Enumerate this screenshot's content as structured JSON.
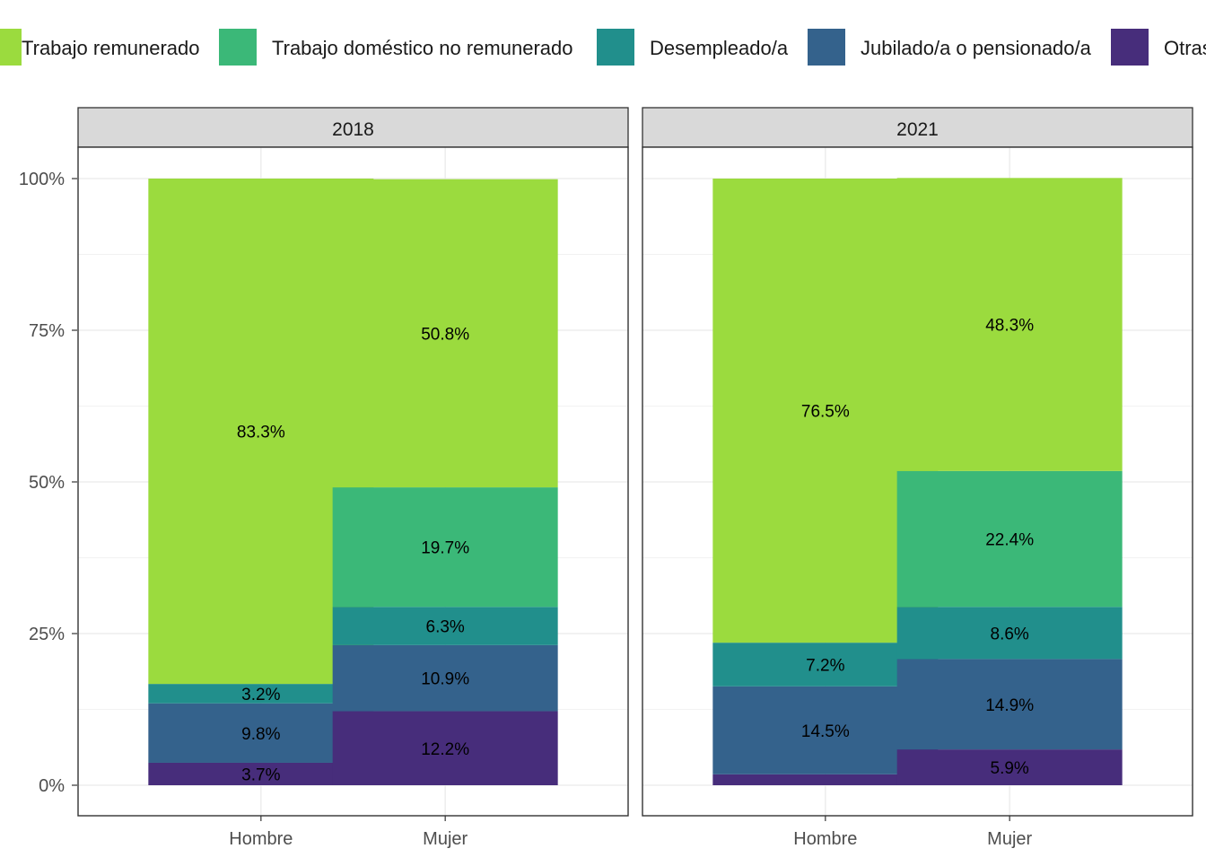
{
  "chart_data": {
    "type": "bar",
    "stacked": true,
    "percent_axis": true,
    "ylim": [
      0,
      1
    ],
    "yticks": [
      0,
      0.25,
      0.5,
      0.75,
      1.0
    ],
    "ytick_labels": [
      "0%",
      "25%",
      "50%",
      "75%",
      "100%"
    ],
    "grid": true,
    "legend_position": "top",
    "categories": [
      "Hombre",
      "Mujer"
    ],
    "series": [
      {
        "name": "Trabajo remunerado",
        "color": "#9bdb3e"
      },
      {
        "name": "Trabajo doméstico no remunerado",
        "color": "#3bb878"
      },
      {
        "name": "Desempleado/a",
        "color": "#218f8c"
      },
      {
        "name": "Jubilado/a o pensionado/a",
        "color": "#34628c"
      },
      {
        "name": "Otras",
        "color": "#472d7b"
      }
    ],
    "panels": [
      {
        "title": "2018",
        "bars": [
          {
            "category": "Hombre",
            "values": [
              0.833,
              0.0,
              0.032,
              0.098,
              0.037
            ],
            "labels": [
              "83.3%",
              "",
              "3.2%",
              "9.8%",
              "3.7%"
            ]
          },
          {
            "category": "Mujer",
            "values": [
              0.508,
              0.197,
              0.063,
              0.109,
              0.122
            ],
            "labels": [
              "50.8%",
              "19.7%",
              "6.3%",
              "10.9%",
              "12.2%"
            ]
          }
        ]
      },
      {
        "title": "2021",
        "bars": [
          {
            "category": "Hombre",
            "values": [
              0.765,
              0.0,
              0.072,
              0.145,
              0.018
            ],
            "labels": [
              "76.5%",
              "",
              "7.2%",
              "14.5%",
              ""
            ]
          },
          {
            "category": "Mujer",
            "values": [
              0.483,
              0.224,
              0.086,
              0.149,
              0.059
            ],
            "labels": [
              "48.3%",
              "22.4%",
              "8.6%",
              "14.9%",
              "5.9%"
            ]
          }
        ]
      }
    ]
  }
}
